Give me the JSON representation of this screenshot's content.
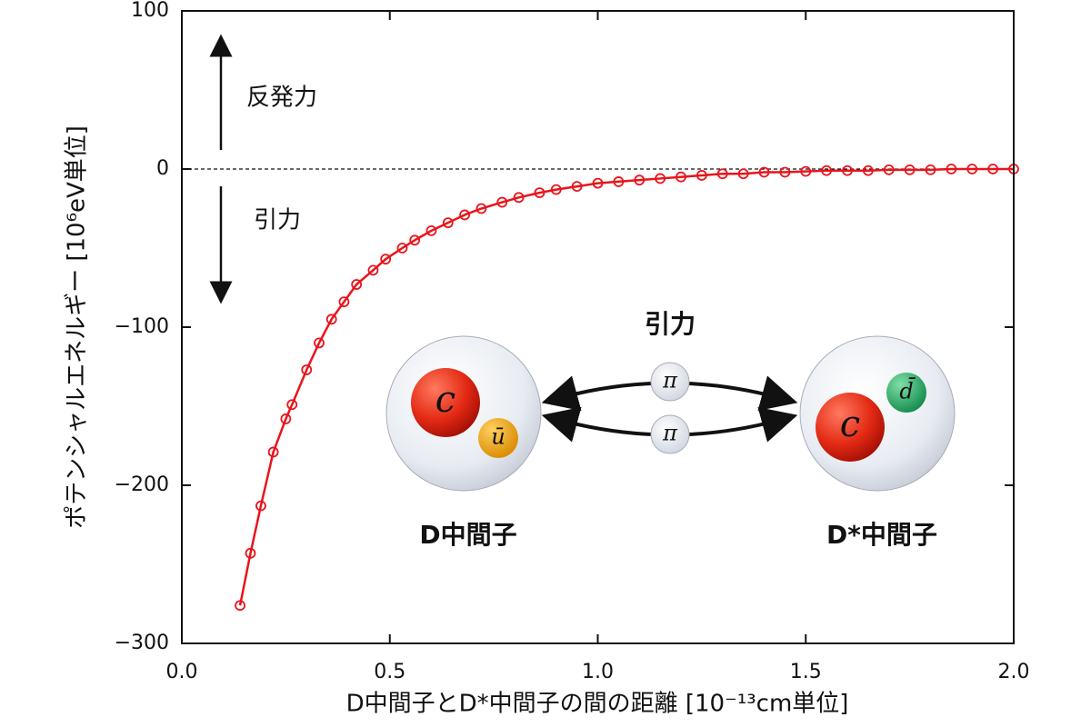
{
  "chart_data": {
    "type": "line",
    "x_label": "D中間子とD*中間子の間の距離 [10⁻¹³cm単位]",
    "y_label": "ポテンシャルエネルギー [10⁶eV単位]",
    "xlim": [
      0,
      2.0
    ],
    "ylim": [
      -300,
      100
    ],
    "xticks": [
      {
        "value": 0,
        "label": "0.0"
      },
      0.5,
      {
        "value": 1,
        "label": "1.0"
      },
      1.5,
      {
        "value": 2,
        "label": "2.0"
      }
    ],
    "yticks": [
      {
        "value": -300,
        "label": "−300"
      },
      {
        "value": -200,
        "label": "−200"
      },
      {
        "value": -100,
        "label": "−100"
      },
      0,
      100
    ],
    "zero_line": true,
    "series": [
      {
        "color": "#e8141c",
        "x": [
          0.14,
          0.165,
          0.19,
          0.22,
          0.25,
          0.265,
          0.3,
          0.33,
          0.36,
          0.39,
          0.42,
          0.46,
          0.49,
          0.53,
          0.56,
          0.6,
          0.64,
          0.68,
          0.72,
          0.77,
          0.81,
          0.86,
          0.9,
          0.95,
          1.0,
          1.05,
          1.1,
          1.15,
          1.2,
          1.25,
          1.3,
          1.35,
          1.4,
          1.45,
          1.5,
          1.55,
          1.6,
          1.65,
          1.7,
          1.75,
          1.8,
          1.85,
          1.9,
          1.95,
          2.0
        ],
        "values": [
          -276,
          -243,
          -213,
          -179,
          -158,
          -149,
          -127,
          -110,
          -95,
          -84,
          -73,
          -64,
          -57,
          -50,
          -45,
          -39,
          -34,
          -29,
          -25,
          -21,
          -18,
          -15,
          -13,
          -11,
          -9,
          -8,
          -7,
          -6,
          -5,
          -4,
          -3,
          -3,
          -2,
          -2,
          -1.5,
          -1,
          -1,
          -1,
          -0.5,
          -0.5,
          -0.5,
          0,
          0,
          0,
          0
        ]
      }
    ],
    "annotations": [
      "反発力",
      "引力"
    ],
    "inset": {
      "title": "引力",
      "left_label": "D中間子",
      "right_label": "D*中間子",
      "left_quarks": [
        "c",
        "ū"
      ],
      "right_quarks": [
        "c",
        "d̄"
      ],
      "exchange": [
        "π",
        "π"
      ]
    }
  }
}
